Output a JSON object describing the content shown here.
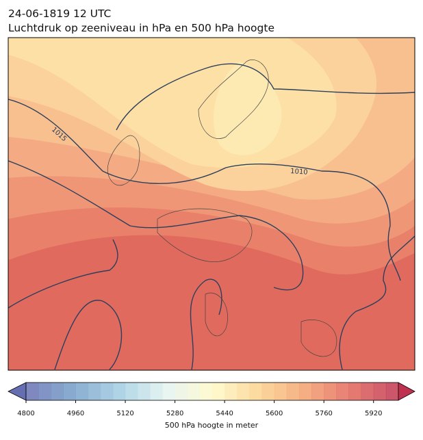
{
  "title": [
    "24-06-1819 12 UTC",
    "Luchtdruk op zeeniveau in hPa en 500 hPa hoogte"
  ],
  "map": {
    "contour_labels": [
      "1015",
      "1010"
    ]
  },
  "colorbar": {
    "label": "500 hPa hoogte in meter",
    "lim": [
      4800,
      6000
    ],
    "ticks": [
      4800,
      4960,
      5120,
      5280,
      5440,
      5600,
      5760,
      5920
    ]
  }
}
